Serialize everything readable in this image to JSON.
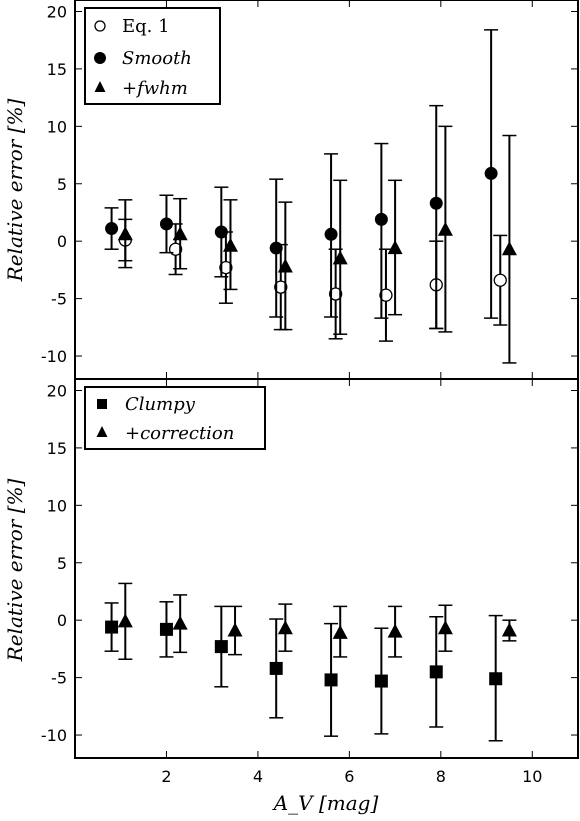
{
  "chart_data": [
    {
      "type": "scatter",
      "ylabel": "Relative error [%]",
      "xlim": [
        0,
        11
      ],
      "ylim": [
        -12,
        21
      ],
      "yticks": [
        "-10",
        "-5",
        "0",
        "5",
        "10",
        "15",
        "20"
      ],
      "legend_position": "top-left",
      "series": [
        {
          "name": "Eq. 1",
          "marker": "open-circle",
          "x": [
            1.1,
            2.2,
            3.3,
            4.5,
            5.7,
            6.8,
            7.9,
            9.3
          ],
          "y": [
            0.1,
            -0.7,
            -2.3,
            -4.0,
            -4.6,
            -4.7,
            -3.8,
            -3.4
          ],
          "err_low": [
            1.8,
            2.2,
            3.1,
            3.7,
            3.9,
            4.0,
            3.8,
            3.9
          ],
          "err_high": [
            1.8,
            2.2,
            3.1,
            3.7,
            3.9,
            4.0,
            3.8,
            3.9
          ]
        },
        {
          "name": "Smooth",
          "marker": "filled-circle",
          "x": [
            0.8,
            2.0,
            3.2,
            4.4,
            5.6,
            6.7,
            7.9,
            9.1
          ],
          "y": [
            1.1,
            1.5,
            0.8,
            -0.6,
            0.6,
            1.9,
            3.3,
            5.9
          ],
          "err_low": [
            1.8,
            2.5,
            3.9,
            6.0,
            7.2,
            8.6,
            10.9,
            12.6
          ],
          "err_high": [
            1.8,
            2.5,
            3.9,
            6.0,
            7.0,
            6.6,
            8.5,
            12.5
          ]
        },
        {
          "name": "+fwhm",
          "marker": "filled-triangle",
          "x": [
            1.1,
            2.3,
            3.4,
            4.6,
            5.8,
            7.0,
            8.1,
            9.5
          ],
          "y": [
            0.6,
            0.6,
            -0.4,
            -2.2,
            -1.5,
            -0.6,
            1.0,
            -0.7
          ],
          "err_low": [
            2.9,
            3.0,
            3.8,
            5.5,
            6.6,
            5.8,
            8.9,
            9.9
          ],
          "err_high": [
            3.0,
            3.1,
            4.0,
            5.6,
            6.8,
            5.9,
            9.0,
            9.9
          ]
        }
      ]
    },
    {
      "type": "scatter",
      "xlabel": "A_V [mag]",
      "ylabel": "Relative error [%]",
      "xlim": [
        0,
        11
      ],
      "ylim": [
        -12,
        21
      ],
      "xticks": [
        "2",
        "4",
        "6",
        "8",
        "10"
      ],
      "yticks": [
        "-10",
        "-5",
        "0",
        "5",
        "10",
        "15",
        "20"
      ],
      "legend_position": "top-left",
      "series": [
        {
          "name": "Clumpy",
          "marker": "filled-square",
          "x": [
            0.8,
            2.0,
            3.2,
            4.4,
            5.6,
            6.7,
            7.9,
            9.2
          ],
          "y": [
            -0.6,
            -0.8,
            -2.3,
            -4.2,
            -5.2,
            -5.3,
            -4.5,
            -5.1
          ],
          "err_low": [
            2.1,
            2.4,
            3.5,
            4.3,
            4.9,
            4.6,
            4.8,
            5.4
          ],
          "err_high": [
            2.1,
            2.4,
            3.5,
            4.3,
            4.9,
            4.6,
            4.8,
            5.5
          ]
        },
        {
          "name": "+correction",
          "marker": "filled-triangle",
          "x": [
            1.1,
            2.3,
            3.5,
            4.6,
            5.8,
            7.0,
            8.1,
            9.5
          ],
          "y": [
            -0.1,
            -0.3,
            -0.9,
            -0.7,
            -1.1,
            -1.0,
            -0.7,
            -0.9
          ],
          "err_low": [
            3.3,
            2.5,
            2.1,
            2.0,
            2.1,
            2.2,
            2.0,
            0.9
          ],
          "err_high": [
            3.3,
            2.5,
            2.1,
            2.1,
            2.3,
            2.2,
            2.0,
            0.9
          ]
        }
      ]
    }
  ]
}
